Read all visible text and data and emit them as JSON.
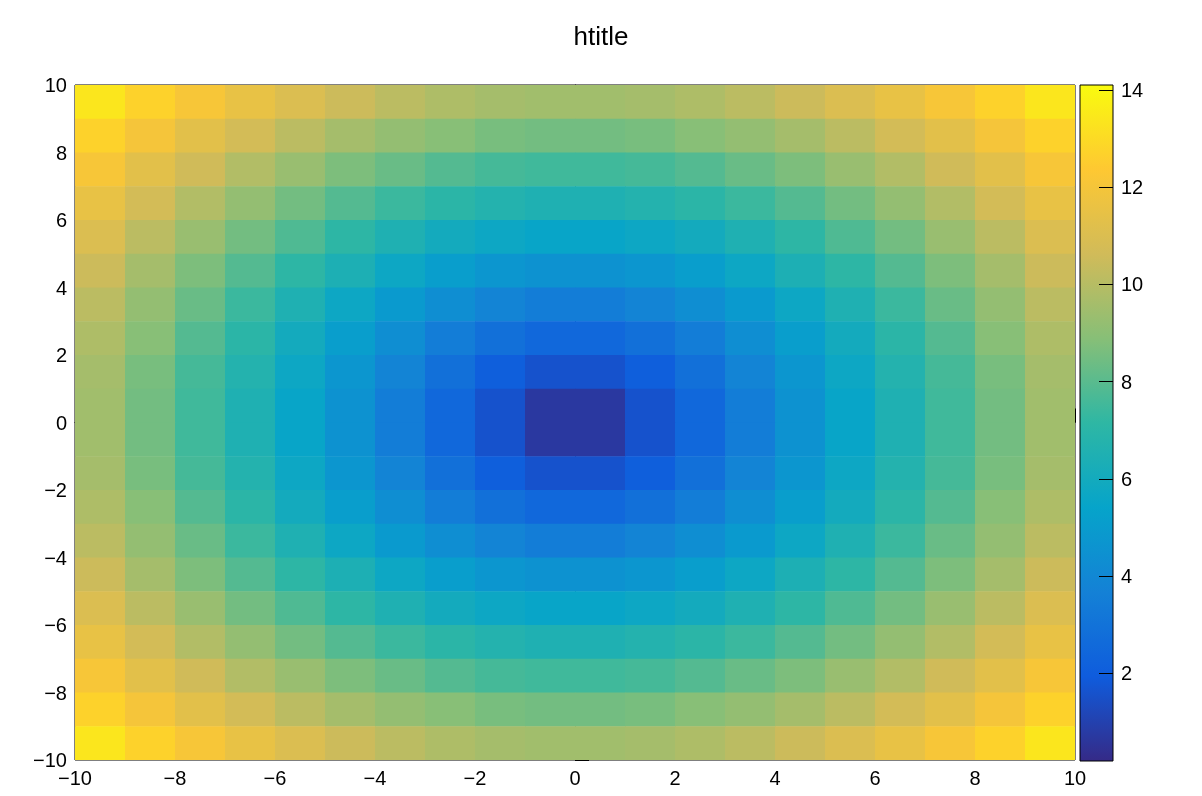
{
  "chart_data": {
    "type": "heatmap",
    "title": "htitle",
    "x": [
      -9.5,
      -8.5,
      -7.5,
      -6.5,
      -5.5,
      -4.5,
      -3.5,
      -2.5,
      -1.5,
      -0.5,
      0.5,
      1.5,
      2.5,
      3.5,
      4.5,
      5.5,
      6.5,
      7.5,
      8.5,
      9.5
    ],
    "y": [
      9.5,
      8.5,
      7.5,
      6.5,
      5.5,
      4.5,
      3.5,
      2.5,
      1.5,
      0.5,
      -0.5,
      -1.5,
      -2.5,
      -3.5,
      -4.5,
      -5.5,
      -6.5,
      -7.5,
      -8.5,
      -9.5
    ],
    "xlim": [
      -10,
      10
    ],
    "xticks": [
      -10,
      -8,
      -6,
      -4,
      -2,
      0,
      2,
      4,
      6,
      8,
      10
    ],
    "ylim": [
      -10,
      10
    ],
    "yticks": [
      -10,
      -8,
      -6,
      -4,
      -2,
      0,
      2,
      4,
      6,
      8,
      10
    ],
    "clim": [
      0.2,
      14.1
    ],
    "cticks": [
      2,
      4,
      6,
      8,
      10,
      12,
      14
    ],
    "cells": [
      [
        13.4,
        12.7,
        12.1,
        11.5,
        11.0,
        10.5,
        10.1,
        9.8,
        9.6,
        9.5,
        9.5,
        9.6,
        9.8,
        10.1,
        10.5,
        11.0,
        11.5,
        12.1,
        12.7,
        13.4
      ],
      [
        12.7,
        12.0,
        11.3,
        10.7,
        10.1,
        9.6,
        9.2,
        8.9,
        8.6,
        8.5,
        8.5,
        8.6,
        8.9,
        9.2,
        9.6,
        10.1,
        10.7,
        11.3,
        12.0,
        12.7
      ],
      [
        12.1,
        11.3,
        10.6,
        9.9,
        9.3,
        8.7,
        8.3,
        7.9,
        7.6,
        7.5,
        7.5,
        7.6,
        7.9,
        8.3,
        8.7,
        9.3,
        9.9,
        10.6,
        11.3,
        12.1
      ],
      [
        11.5,
        10.7,
        9.9,
        9.2,
        8.5,
        7.9,
        7.4,
        7.0,
        6.7,
        6.5,
        6.5,
        6.7,
        7.0,
        7.4,
        7.9,
        8.5,
        9.2,
        9.9,
        10.7,
        11.5
      ],
      [
        11.0,
        10.1,
        9.3,
        8.5,
        7.8,
        7.1,
        6.5,
        6.0,
        5.7,
        5.5,
        5.5,
        5.7,
        6.0,
        6.5,
        7.1,
        7.8,
        8.5,
        9.3,
        10.1,
        11.0
      ],
      [
        10.5,
        9.6,
        8.7,
        7.9,
        7.1,
        6.4,
        5.7,
        5.1,
        4.7,
        4.5,
        4.5,
        4.7,
        5.1,
        5.7,
        6.4,
        7.1,
        7.9,
        8.7,
        9.6,
        10.5
      ],
      [
        10.1,
        9.2,
        8.3,
        7.4,
        6.5,
        5.7,
        4.9,
        4.3,
        3.8,
        3.5,
        3.5,
        3.8,
        4.3,
        4.9,
        5.7,
        6.5,
        7.4,
        8.3,
        9.2,
        10.1
      ],
      [
        9.8,
        8.9,
        7.9,
        7.0,
        6.0,
        5.1,
        4.3,
        3.5,
        2.9,
        2.5,
        2.5,
        2.9,
        3.5,
        4.3,
        5.1,
        6.0,
        7.0,
        7.9,
        8.9,
        9.8
      ],
      [
        9.6,
        8.6,
        7.6,
        6.7,
        5.7,
        4.7,
        3.8,
        2.9,
        2.1,
        1.6,
        1.6,
        2.1,
        2.9,
        3.8,
        4.7,
        5.7,
        6.7,
        7.6,
        8.6,
        9.6
      ],
      [
        9.5,
        8.5,
        7.5,
        6.5,
        5.5,
        4.5,
        3.5,
        2.5,
        1.6,
        0.7,
        0.7,
        1.6,
        2.5,
        3.5,
        4.5,
        5.5,
        6.5,
        7.5,
        8.5,
        9.5
      ],
      [
        9.5,
        8.5,
        7.5,
        6.5,
        5.5,
        4.5,
        3.5,
        2.5,
        1.6,
        0.7,
        0.7,
        1.6,
        2.5,
        3.5,
        4.5,
        5.5,
        6.5,
        7.5,
        8.5,
        9.5
      ],
      [
        9.6,
        8.6,
        7.6,
        6.7,
        5.7,
        4.7,
        3.8,
        2.9,
        2.1,
        1.6,
        1.6,
        2.1,
        2.9,
        3.8,
        4.7,
        5.7,
        6.7,
        7.6,
        8.6,
        9.6
      ],
      [
        9.8,
        8.9,
        7.9,
        7.0,
        6.0,
        5.1,
        4.3,
        3.5,
        2.9,
        2.5,
        2.5,
        2.9,
        3.5,
        4.3,
        5.1,
        6.0,
        7.0,
        7.9,
        8.9,
        9.8
      ],
      [
        10.1,
        9.2,
        8.3,
        7.4,
        6.5,
        5.7,
        4.9,
        4.3,
        3.8,
        3.5,
        3.5,
        3.8,
        4.3,
        4.9,
        5.7,
        6.5,
        7.4,
        8.3,
        9.2,
        10.1
      ],
      [
        10.5,
        9.6,
        8.7,
        7.9,
        7.1,
        6.4,
        5.7,
        5.1,
        4.7,
        4.5,
        4.5,
        4.7,
        5.1,
        5.7,
        6.4,
        7.1,
        7.9,
        8.7,
        9.6,
        10.5
      ],
      [
        11.0,
        10.1,
        9.3,
        8.5,
        7.8,
        7.1,
        6.5,
        6.0,
        5.7,
        5.5,
        5.5,
        5.7,
        6.0,
        6.5,
        7.1,
        7.8,
        8.5,
        9.3,
        10.1,
        11.0
      ],
      [
        11.5,
        10.7,
        9.9,
        9.2,
        8.5,
        7.9,
        7.4,
        7.0,
        6.7,
        6.5,
        6.5,
        6.7,
        7.0,
        7.4,
        7.9,
        8.5,
        9.2,
        9.9,
        10.7,
        11.5
      ],
      [
        12.1,
        11.3,
        10.6,
        9.9,
        9.3,
        8.7,
        8.3,
        7.9,
        7.6,
        7.5,
        7.5,
        7.6,
        7.9,
        8.3,
        8.7,
        9.3,
        9.9,
        10.6,
        11.3,
        12.1
      ],
      [
        12.7,
        12.0,
        11.3,
        10.7,
        10.1,
        9.6,
        9.2,
        8.9,
        8.6,
        8.5,
        8.5,
        8.6,
        8.9,
        9.2,
        9.6,
        10.1,
        10.7,
        11.3,
        12.0,
        12.7
      ],
      [
        13.4,
        12.7,
        12.1,
        11.5,
        11.0,
        10.5,
        10.1,
        9.8,
        9.6,
        9.5,
        9.5,
        9.6,
        9.8,
        10.1,
        10.5,
        11.0,
        11.5,
        12.1,
        12.7,
        13.4
      ]
    ]
  }
}
